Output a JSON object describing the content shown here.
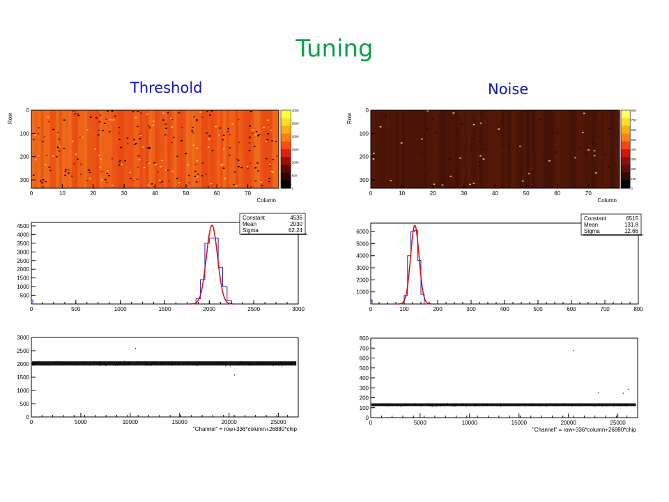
{
  "page": {
    "title": "Tuning",
    "left_title": "Threshold",
    "right_title": "Noise"
  },
  "colors": {
    "title": "#0aa04a",
    "subtitle": "#1010c8",
    "fit": "#e01010",
    "hist": "#2020c0",
    "map_threshold": "#ee4a12",
    "map_noise": "#4a1408"
  },
  "chart_data": [
    {
      "id": "threshold-map",
      "type": "heatmap",
      "ylabel": "Row",
      "xlabel": "Column",
      "xlim": [
        0,
        80
      ],
      "ylim": [
        0,
        336
      ],
      "x_ticks": [
        "0",
        "10",
        "20",
        "30",
        "40",
        "50",
        "60",
        "70"
      ],
      "y_ticks": [
        "0",
        "100",
        "200",
        "300"
      ],
      "colorbar_ticks": [
        "3000",
        "2500",
        "2000",
        "1500",
        "1000",
        "500",
        "0"
      ]
    },
    {
      "id": "threshold-hist",
      "type": "bar",
      "xlim": [
        0,
        3000
      ],
      "ylim": [
        0,
        4700
      ],
      "x_ticks": [
        "0",
        "500",
        "1000",
        "1500",
        "2000",
        "2500",
        "3000"
      ],
      "y_ticks": [
        "500",
        "1000",
        "1500",
        "2000",
        "2500",
        "3000",
        "3500",
        "4000",
        "4500"
      ],
      "stats": [
        {
          "label": "Constant",
          "value": "4536"
        },
        {
          "label": "Mean",
          "value": "2030"
        },
        {
          "label": "Sigma",
          "value": "62.24"
        }
      ],
      "fit": {
        "constant": 4536,
        "mean": 2030,
        "sigma": 62.24
      },
      "bins": {
        "start": 1850,
        "width": 50,
        "values": [
          300,
          1400,
          3500,
          3800,
          3800,
          2100,
          1000,
          200
        ]
      }
    },
    {
      "id": "threshold-scatter",
      "type": "scatter",
      "xlabel": "\"Channel\" = row+336*column+26880*chip",
      "xlim": [
        0,
        27000
      ],
      "ylim": [
        0,
        3000
      ],
      "x_ticks": [
        "0",
        "5000",
        "10000",
        "15000",
        "20000",
        "25000"
      ],
      "y_ticks": [
        "0",
        "500",
        "1000",
        "1500",
        "2000",
        "2500",
        "3000"
      ],
      "band": {
        "center": 2020,
        "spread": 80
      },
      "outliers": [
        {
          "x": 10500,
          "y": 2600
        },
        {
          "x": 20500,
          "y": 1600
        }
      ]
    },
    {
      "id": "noise-map",
      "type": "heatmap",
      "ylabel": "Row",
      "xlabel": "Column",
      "xlim": [
        0,
        80
      ],
      "ylim": [
        0,
        336
      ],
      "x_ticks": [
        "0",
        "10",
        "20",
        "30",
        "40",
        "50",
        "60",
        "70"
      ],
      "y_ticks": [
        "0",
        "100",
        "200",
        "300"
      ],
      "colorbar_ticks": [
        "800",
        "700",
        "600",
        "500",
        "400",
        "300",
        "200",
        "100",
        "0"
      ]
    },
    {
      "id": "noise-hist",
      "type": "bar",
      "xlim": [
        0,
        800
      ],
      "ylim": [
        0,
        6700
      ],
      "x_ticks": [
        "0",
        "100",
        "200",
        "300",
        "400",
        "500",
        "600",
        "700",
        "800"
      ],
      "y_ticks": [
        "1000",
        "2000",
        "3000",
        "4000",
        "5000",
        "6000"
      ],
      "stats": [
        {
          "label": "Constant",
          "value": "6515"
        },
        {
          "label": "Mean",
          "value": "131.8"
        },
        {
          "label": "Sigma",
          "value": "12.66"
        }
      ],
      "fit": {
        "constant": 6515,
        "mean": 131.8,
        "sigma": 12.66
      },
      "bins": {
        "start": 100,
        "width": 10,
        "values": [
          700,
          4000,
          6000,
          6100,
          3600,
          800
        ]
      }
    },
    {
      "id": "noise-scatter",
      "type": "scatter",
      "xlabel": "\"Channel\" = row+336*column+26880*chip",
      "xlim": [
        0,
        27000
      ],
      "ylim": [
        0,
        800
      ],
      "x_ticks": [
        "0",
        "5000",
        "10000",
        "15000",
        "20000",
        "25000"
      ],
      "y_ticks": [
        "0",
        "100",
        "200",
        "300",
        "400",
        "500",
        "600",
        "700",
        "800"
      ],
      "band": {
        "center": 130,
        "spread": 14
      },
      "outliers": [
        {
          "x": 20500,
          "y": 680
        },
        {
          "x": 23000,
          "y": 260
        },
        {
          "x": 25500,
          "y": 250
        },
        {
          "x": 26000,
          "y": 290
        }
      ]
    }
  ]
}
